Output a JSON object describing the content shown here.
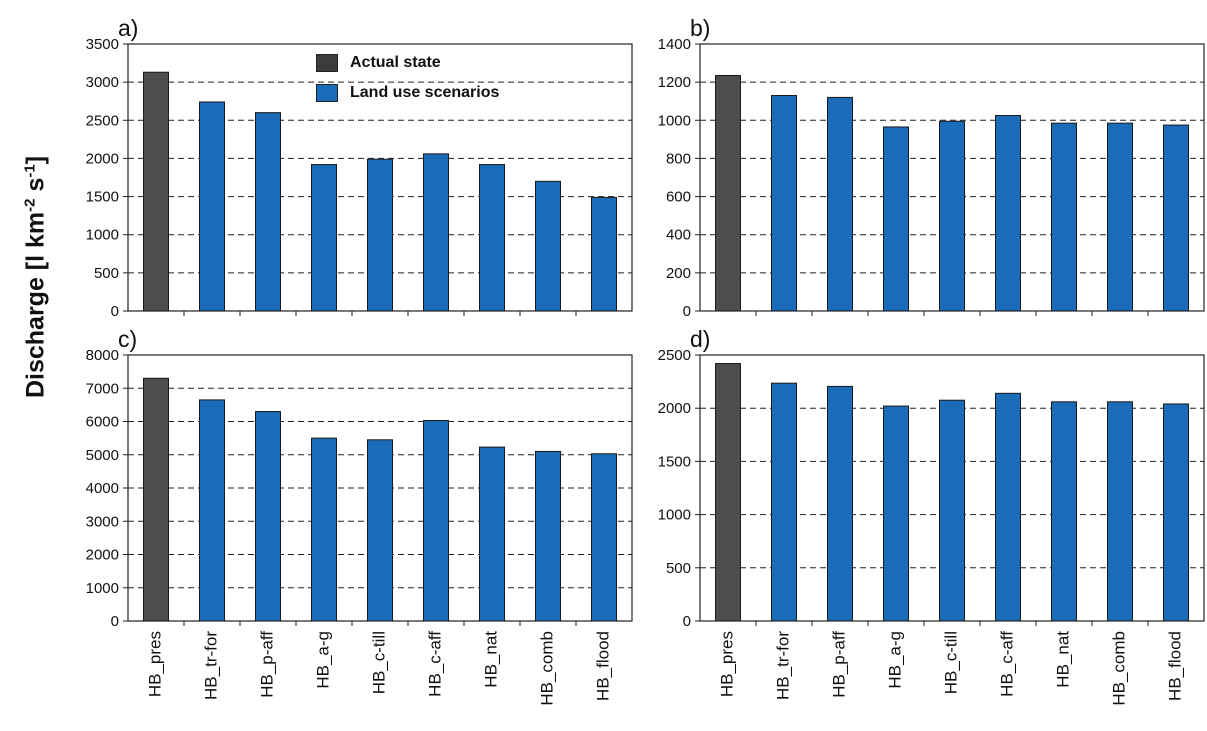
{
  "y_axis_label": {
    "main": "Discharge [l km",
    "sup1": "-2",
    "mid": " s",
    "sup2": "-1",
    "end": "]"
  },
  "legend": {
    "items": [
      {
        "label": "Actual state",
        "color": "#4d4d4f"
      },
      {
        "label": "Land use scenarios",
        "color": "#1b6bb8"
      }
    ]
  },
  "colors": {
    "actual": "#4d4d4f",
    "scenario": "#1b6bb8"
  },
  "chart_data": [
    {
      "panel_label": "a)",
      "type": "bar",
      "categories": [
        "HB_pres",
        "HB_tr-for",
        "HB_p-aff",
        "HB_a-g",
        "HB_c-till",
        "HB_c-aff",
        "HB_nat",
        "HB_comb",
        "HB_flood"
      ],
      "values": [
        3130,
        2740,
        2600,
        1920,
        1990,
        2060,
        1920,
        1700,
        1490
      ],
      "ylim": [
        0,
        3500
      ],
      "yticks": [
        0,
        500,
        1000,
        1500,
        2000,
        2500,
        3000,
        3500
      ],
      "show_xlabels": false,
      "grid": "dashed-horizontal"
    },
    {
      "panel_label": "b)",
      "type": "bar",
      "categories": [
        "HB_pres",
        "HB_tr-for",
        "HB_p-aff",
        "HB_a-g",
        "HB_c-till",
        "HB_c-aff",
        "HB_nat",
        "HB_comb",
        "HB_flood"
      ],
      "values": [
        1235,
        1130,
        1120,
        965,
        995,
        1025,
        985,
        985,
        975
      ],
      "ylim": [
        0,
        1400
      ],
      "yticks": [
        0,
        200,
        400,
        600,
        800,
        1000,
        1200,
        1400
      ],
      "show_xlabels": false,
      "grid": "dashed-horizontal"
    },
    {
      "panel_label": "c)",
      "type": "bar",
      "categories": [
        "HB_pres",
        "HB_tr-for",
        "HB_p-aff",
        "HB_a-g",
        "HB_c-till",
        "HB_c-aff",
        "HB_nat",
        "HB_comb",
        "HB_flood"
      ],
      "values": [
        7300,
        6650,
        6300,
        5500,
        5450,
        6030,
        5230,
        5100,
        5030
      ],
      "ylim": [
        0,
        8000
      ],
      "yticks": [
        0,
        1000,
        2000,
        3000,
        4000,
        5000,
        6000,
        7000,
        8000
      ],
      "show_xlabels": true,
      "grid": "dashed-horizontal"
    },
    {
      "panel_label": "d)",
      "type": "bar",
      "categories": [
        "HB_pres",
        "HB_tr-for",
        "HB_p-aff",
        "HB_a-g",
        "HB_c-till",
        "HB_c-aff",
        "HB_nat",
        "HB_comb",
        "HB_flood"
      ],
      "values": [
        2420,
        2235,
        2205,
        2020,
        2075,
        2140,
        2060,
        2060,
        2040
      ],
      "ylim": [
        0,
        2500
      ],
      "yticks": [
        0,
        500,
        1000,
        1500,
        2000,
        2500
      ],
      "show_xlabels": true,
      "grid": "dashed-horizontal"
    }
  ]
}
